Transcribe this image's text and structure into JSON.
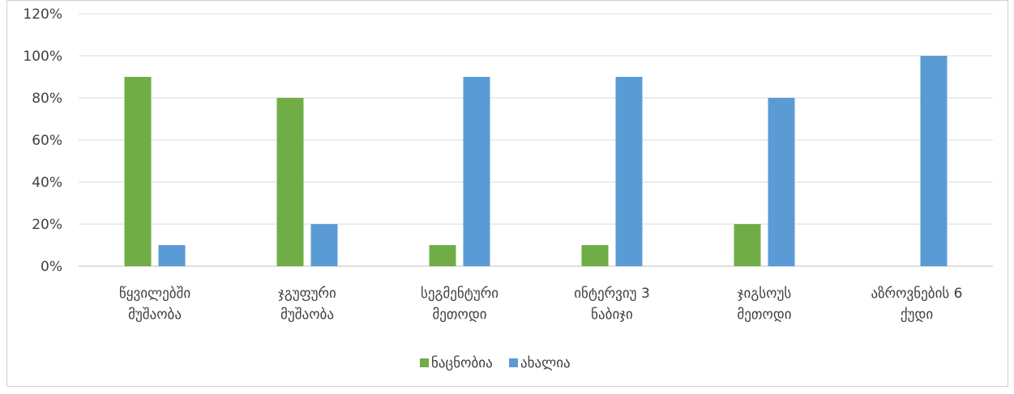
{
  "chart_data": {
    "type": "bar",
    "title": "",
    "xlabel": "",
    "ylabel": "",
    "ylim": [
      0,
      120
    ],
    "yticks": [
      0,
      20,
      40,
      60,
      80,
      100,
      120
    ],
    "ytick_suffix": "%",
    "grid": true,
    "legend_position": "bottom",
    "categories": [
      [
        "წყვილებში",
        "მუშაობა"
      ],
      [
        "ჯგუფური",
        "მუშაობა"
      ],
      [
        "სეგმენტური",
        "მეთოდი"
      ],
      [
        "ინტერვიუ 3",
        "ნაბიჯი"
      ],
      [
        "ჯიგსოუს",
        "მეთოდი"
      ],
      [
        "აზროვნების 6",
        "ქუდი"
      ]
    ],
    "series": [
      {
        "name": "ნაცნობია",
        "color": "#70ad47",
        "values": [
          90,
          80,
          10,
          10,
          20,
          0
        ]
      },
      {
        "name": "ახალია",
        "color": "#5b9bd5",
        "values": [
          10,
          20,
          90,
          90,
          80,
          100
        ]
      }
    ]
  }
}
